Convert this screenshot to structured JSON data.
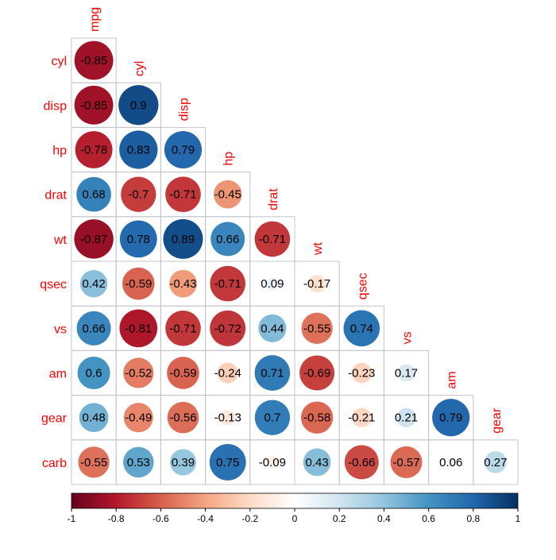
{
  "chart_data": {
    "type": "heatmap",
    "variables": [
      "mpg",
      "cyl",
      "disp",
      "hp",
      "drat",
      "wt",
      "qsec",
      "vs",
      "am",
      "gear",
      "carb"
    ],
    "row_labels": [
      "cyl",
      "disp",
      "hp",
      "drat",
      "wt",
      "qsec",
      "vs",
      "am",
      "gear",
      "carb"
    ],
    "col_labels": [
      "mpg",
      "cyl",
      "disp",
      "hp",
      "drat",
      "wt",
      "qsec",
      "vs",
      "am",
      "gear"
    ],
    "matrix_shape": "lower-triangle",
    "glyph": "circle",
    "values": [
      [
        -0.85
      ],
      [
        -0.85,
        0.9
      ],
      [
        -0.78,
        0.83,
        0.79
      ],
      [
        0.68,
        -0.7,
        -0.71,
        -0.45
      ],
      [
        -0.87,
        0.78,
        0.89,
        0.66,
        -0.71
      ],
      [
        0.42,
        -0.59,
        -0.43,
        -0.71,
        0.09,
        -0.17
      ],
      [
        0.66,
        -0.81,
        -0.71,
        -0.72,
        0.44,
        -0.55,
        0.74
      ],
      [
        0.6,
        -0.52,
        -0.59,
        -0.24,
        0.71,
        -0.69,
        -0.23,
        0.17
      ],
      [
        0.48,
        -0.49,
        -0.56,
        -0.13,
        0.7,
        -0.58,
        -0.21,
        0.21,
        0.79
      ],
      [
        -0.55,
        0.53,
        0.39,
        0.75,
        -0.09,
        0.43,
        -0.66,
        -0.57,
        0.06,
        0.27
      ]
    ],
    "colorbar": {
      "range": [
        -1,
        1
      ],
      "ticks": [
        "-1",
        "-0.8",
        "-0.6",
        "-0.4",
        "-0.2",
        "0",
        "0.2",
        "0.4",
        "0.6",
        "0.8",
        "1"
      ],
      "colors": [
        "#67001F",
        "#B2182B",
        "#D6604D",
        "#F4A582",
        "#FDDBC7",
        "#FFFFFF",
        "#D1E5F0",
        "#92C5DE",
        "#4393C3",
        "#2166AC",
        "#053061"
      ],
      "placement": "bottom"
    },
    "label_color": "#FF0000",
    "grid": true,
    "legend": "bottom"
  }
}
